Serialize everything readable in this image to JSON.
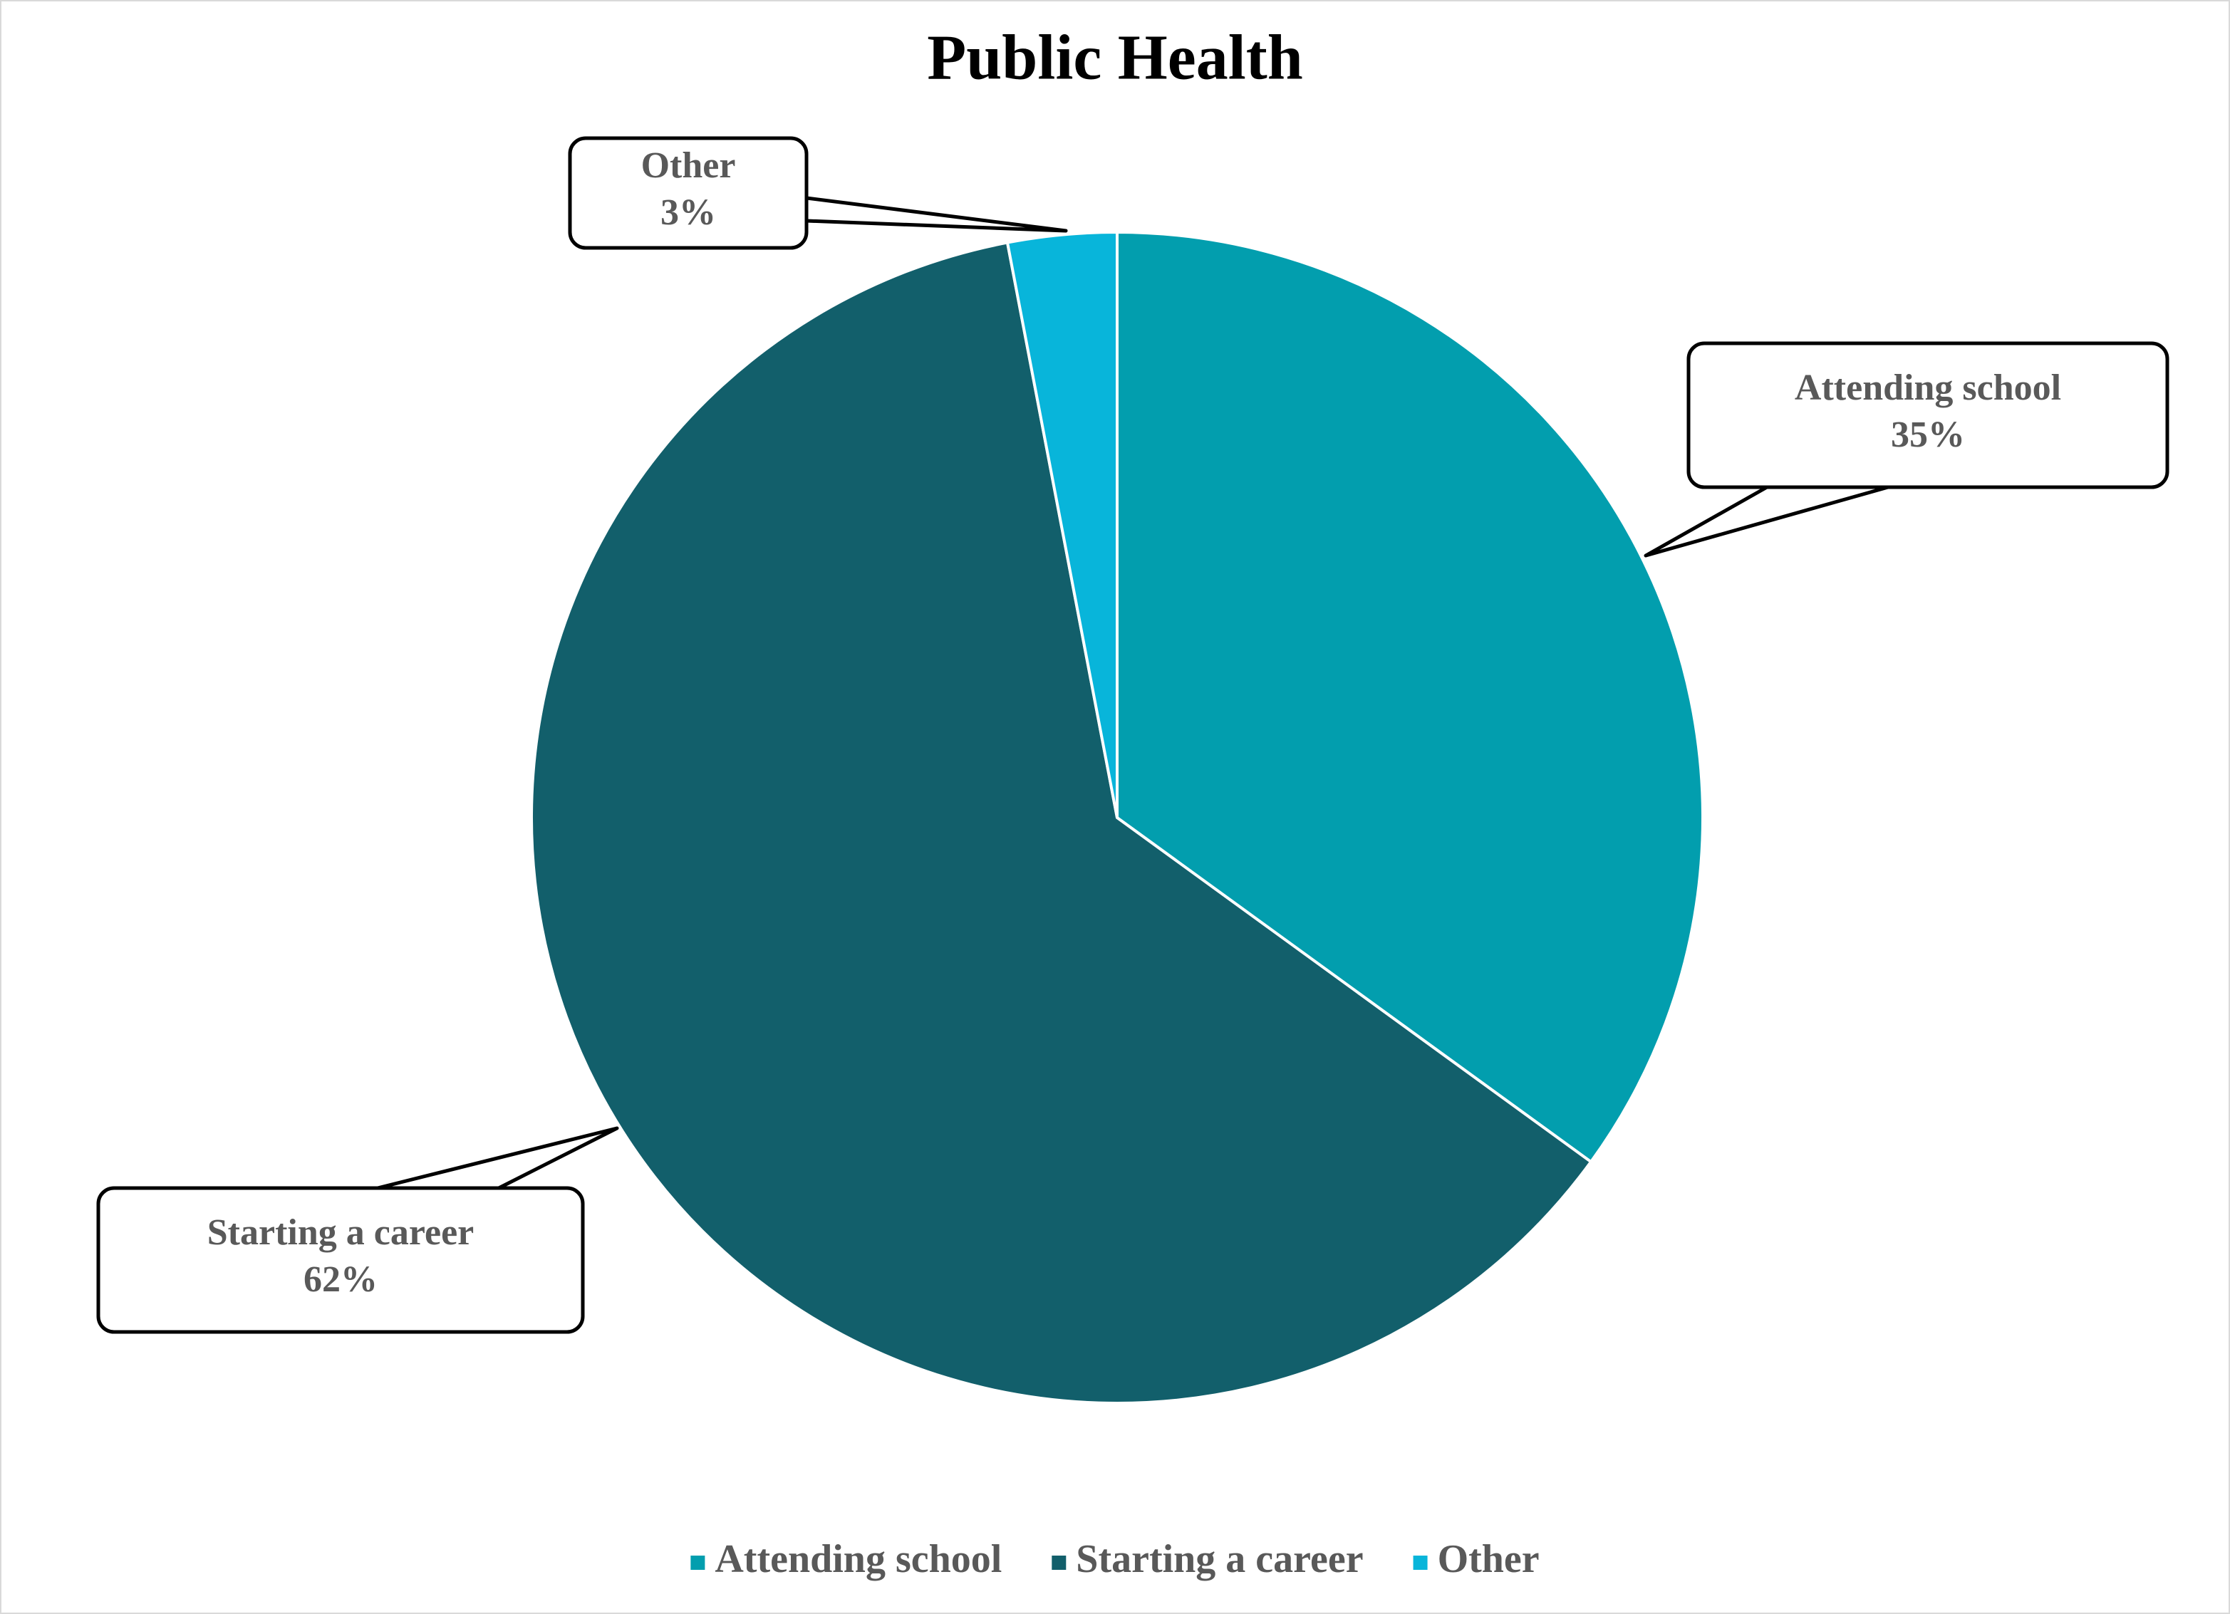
{
  "chart_data": {
    "type": "pie",
    "title": "Public Health",
    "categories": [
      "Attending school",
      "Starting a career",
      "Other"
    ],
    "values": [
      35,
      62,
      3
    ],
    "value_labels": [
      "35%",
      "62%",
      "3%"
    ],
    "colors": [
      "#029eae",
      "#125f6b",
      "#08b5da"
    ],
    "legend": "bottom"
  }
}
